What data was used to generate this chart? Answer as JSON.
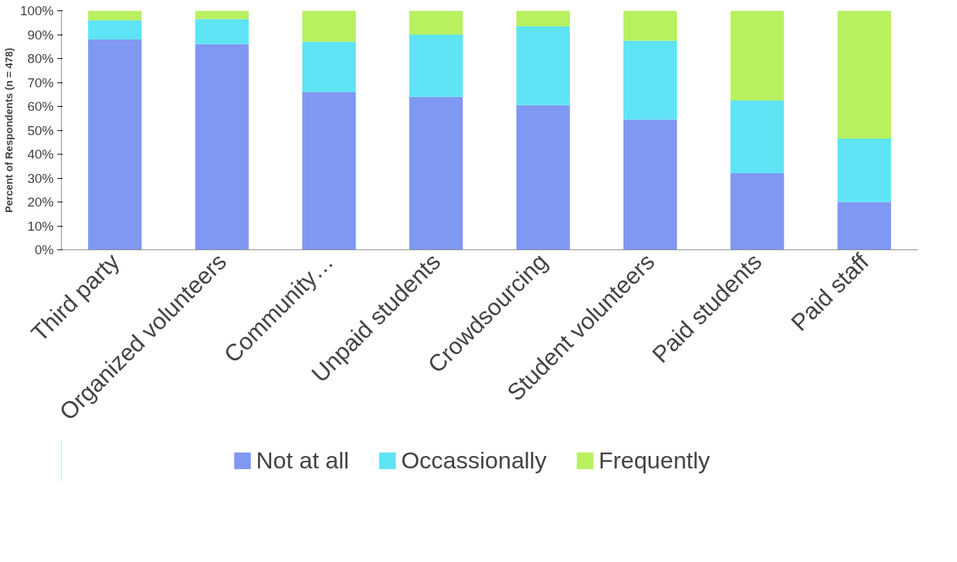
{
  "chart_data": {
    "type": "bar",
    "stacked": true,
    "ylabel": "Percent of Respondents (n = 478)",
    "categories": [
      "Third party",
      "Organized volunteers",
      "Community…",
      "Unpaid students",
      "Crowdsourcing",
      "Student volunteers",
      "Paid students",
      "Paid staff"
    ],
    "series": [
      {
        "name": "Not at all",
        "color": "#7f98f2",
        "values": [
          88,
          86,
          66,
          64,
          60.5,
          54.5,
          32,
          20
        ]
      },
      {
        "name": "Occassionally",
        "color": "#5ee4f5",
        "values": [
          8,
          10.5,
          21,
          26,
          33,
          33,
          30.5,
          26.5
        ]
      },
      {
        "name": "Frequently",
        "color": "#b8f060",
        "values": [
          4,
          3.5,
          13,
          10,
          6.5,
          12.5,
          37.5,
          53.5
        ]
      }
    ],
    "ylim": [
      0,
      100
    ],
    "yticks": [
      {
        "value": 0,
        "label": "0%"
      },
      {
        "value": 10,
        "label": "10%"
      },
      {
        "value": 20,
        "label": "20%"
      },
      {
        "value": 30,
        "label": "30%"
      },
      {
        "value": 40,
        "label": "40%"
      },
      {
        "value": 50,
        "label": "50%"
      },
      {
        "value": 60,
        "label": "60%"
      },
      {
        "value": 70,
        "label": "70%"
      },
      {
        "value": 80,
        "label": "80%"
      },
      {
        "value": 90,
        "label": "90%"
      },
      {
        "value": 100,
        "label": "100%"
      }
    ],
    "grid": false,
    "legend": "bottom"
  }
}
